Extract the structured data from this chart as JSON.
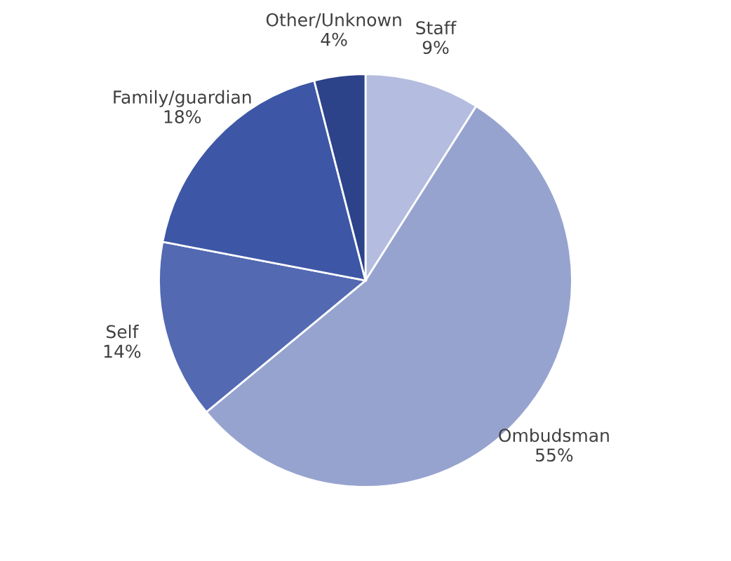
{
  "chart_data": {
    "type": "pie",
    "categories": [
      "Staff",
      "Ombudsman",
      "Self",
      "Family/guardian",
      "Other/Unknown"
    ],
    "values": [
      9,
      55,
      14,
      18,
      4
    ],
    "value_labels": [
      "9%",
      "55%",
      "14%",
      "18%",
      "4%"
    ],
    "colors": [
      "#b4bcdf",
      "#97a3cf",
      "#5369b2",
      "#3d57a6",
      "#2c4289"
    ]
  }
}
